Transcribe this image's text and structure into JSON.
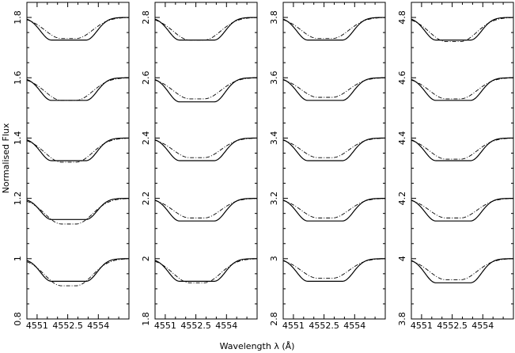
{
  "chart_data": {
    "type": "line",
    "layout": "1x4 panels, each with 5 vertically offset line profiles",
    "xlabel": "Wavelength λ (Å)",
    "ylabel": "Normalised Flux",
    "xlim": [
      4550.5,
      4555.5
    ],
    "xticks": [
      4551,
      4552.5,
      4554
    ],
    "xtick_labels": [
      "4551",
      "4552.5",
      "4554"
    ],
    "series_styles": [
      "solid",
      "dash-dot"
    ],
    "panels": [
      {
        "ylim": [
          0.8,
          1.85
        ],
        "yticks": [
          0.8,
          1,
          1.2,
          1.4,
          1.6,
          1.8
        ],
        "ytick_labels": [
          "0.8",
          "1",
          "1.2",
          "1.4",
          "1.6",
          "1.8"
        ],
        "profiles": [
          {
            "offset": 1.0,
            "depth_solid": 0.075,
            "depth_dashdot": 0.09
          },
          {
            "offset": 1.2,
            "depth_solid": 0.07,
            "depth_dashdot": 0.085
          },
          {
            "offset": 1.4,
            "depth_solid": 0.075,
            "depth_dashdot": 0.08
          },
          {
            "offset": 1.6,
            "depth_solid": 0.075,
            "depth_dashdot": 0.075
          },
          {
            "offset": 1.8,
            "depth_solid": 0.075,
            "depth_dashdot": 0.07
          }
        ]
      },
      {
        "ylim": [
          1.8,
          2.85
        ],
        "yticks": [
          1.8,
          2,
          2.2,
          2.4,
          2.6,
          2.8
        ],
        "ytick_labels": [
          "1.8",
          "2",
          "2.2",
          "2.4",
          "2.6",
          "2.8"
        ],
        "profiles": [
          {
            "offset": 2.0,
            "depth_solid": 0.075,
            "depth_dashdot": 0.08
          },
          {
            "offset": 2.2,
            "depth_solid": 0.075,
            "depth_dashdot": 0.065
          },
          {
            "offset": 2.4,
            "depth_solid": 0.075,
            "depth_dashdot": 0.065
          },
          {
            "offset": 2.6,
            "depth_solid": 0.08,
            "depth_dashdot": 0.07
          },
          {
            "offset": 2.8,
            "depth_solid": 0.075,
            "depth_dashdot": 0.075
          }
        ]
      },
      {
        "ylim": [
          2.8,
          3.85
        ],
        "yticks": [
          2.8,
          3,
          3.2,
          3.4,
          3.6,
          3.8
        ],
        "ytick_labels": [
          "2.8",
          "3",
          "3.2",
          "3.4",
          "3.6",
          "3.8"
        ],
        "profiles": [
          {
            "offset": 3.0,
            "depth_solid": 0.075,
            "depth_dashdot": 0.065
          },
          {
            "offset": 3.2,
            "depth_solid": 0.075,
            "depth_dashdot": 0.065
          },
          {
            "offset": 3.4,
            "depth_solid": 0.075,
            "depth_dashdot": 0.065
          },
          {
            "offset": 3.6,
            "depth_solid": 0.075,
            "depth_dashdot": 0.065
          },
          {
            "offset": 3.8,
            "depth_solid": 0.075,
            "depth_dashdot": 0.07
          }
        ]
      },
      {
        "ylim": [
          3.8,
          4.85
        ],
        "yticks": [
          3.8,
          4,
          4.2,
          4.4,
          4.6,
          4.8
        ],
        "ytick_labels": [
          "3.8",
          "4",
          "4.2",
          "4.4",
          "4.6",
          "4.8"
        ],
        "profiles": [
          {
            "offset": 4.0,
            "depth_solid": 0.08,
            "depth_dashdot": 0.07
          },
          {
            "offset": 4.2,
            "depth_solid": 0.075,
            "depth_dashdot": 0.065
          },
          {
            "offset": 4.4,
            "depth_solid": 0.075,
            "depth_dashdot": 0.07
          },
          {
            "offset": 4.6,
            "depth_solid": 0.075,
            "depth_dashdot": 0.07
          },
          {
            "offset": 4.8,
            "depth_solid": 0.075,
            "depth_dashdot": 0.08
          }
        ]
      }
    ]
  }
}
